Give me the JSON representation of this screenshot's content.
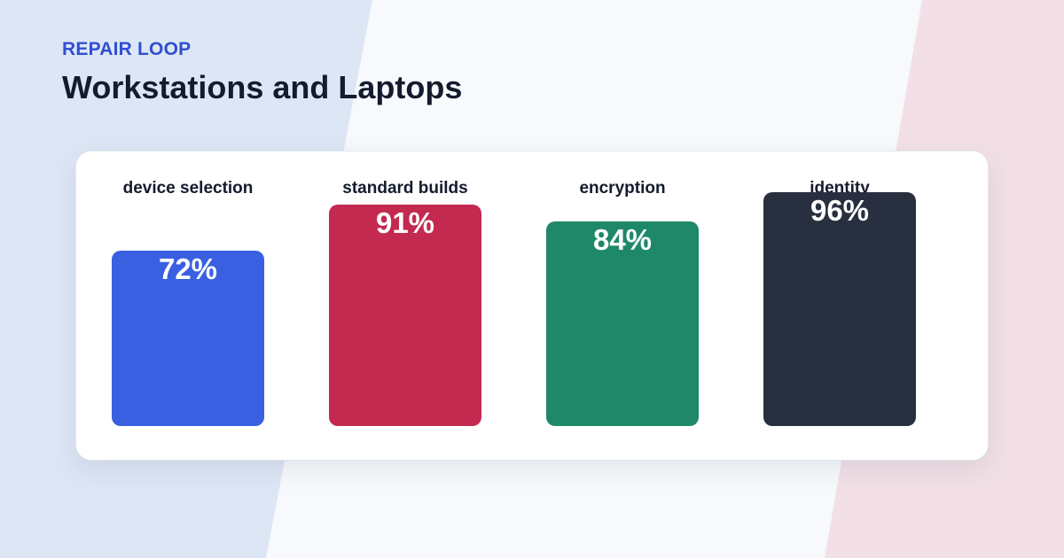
{
  "eyebrow": "REPAIR LOOP",
  "title": "Workstations and Laptops",
  "colors": {
    "eyebrow": "#2f4fd0",
    "bg_left": "#dde6f5",
    "bg_right": "#f2e0e6"
  },
  "chart_data": {
    "type": "bar",
    "categories": [
      "device selection",
      "standard builds",
      "encryption",
      "identity"
    ],
    "values": [
      72,
      91,
      84,
      96
    ],
    "value_labels": [
      "72%",
      "91%",
      "84%",
      "96%"
    ],
    "colors": [
      "#3860e0",
      "#c4294f",
      "#1f8868",
      "#283040"
    ],
    "unit": "%",
    "ylim": [
      0,
      100
    ],
    "grid": false,
    "legend": "none"
  }
}
